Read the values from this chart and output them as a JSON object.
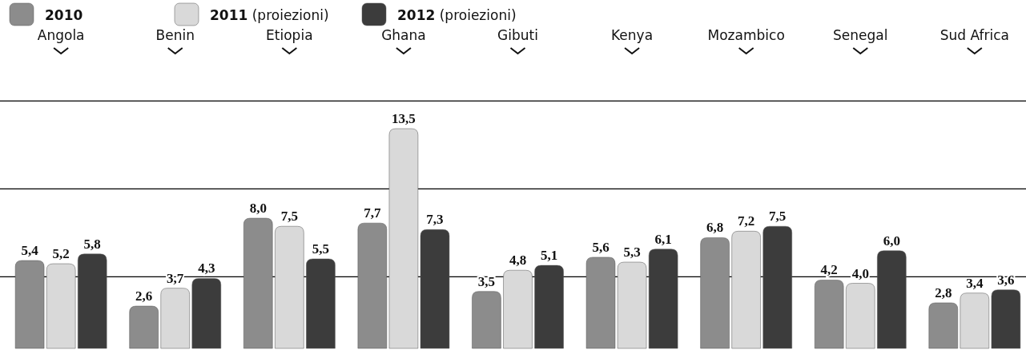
{
  "chart_data": {
    "type": "bar",
    "categories": [
      "Angola",
      "Benin",
      "Etiopia",
      "Ghana",
      "Gibuti",
      "Kenya",
      "Mozambico",
      "Senegal",
      "Sud Africa"
    ],
    "series": [
      {
        "name": "2010",
        "color": "#8c8c8c",
        "values": [
          5.4,
          2.6,
          8.0,
          7.7,
          3.5,
          5.6,
          6.8,
          4.2,
          2.8
        ],
        "value_labels": [
          "5,4",
          "2,6",
          "8,0",
          "7,7",
          "3,5",
          "5,6",
          "6,8",
          "4,2",
          "2,8"
        ]
      },
      {
        "name": "2011 (proiezioni)",
        "color": "#d9d9d9",
        "values": [
          5.2,
          3.7,
          7.5,
          13.5,
          4.8,
          5.3,
          7.2,
          4.0,
          3.4
        ],
        "value_labels": [
          "5,2",
          "3,7",
          "7,5",
          "13,5",
          "4,8",
          "5,3",
          "7,2",
          "4,0",
          "3,4"
        ]
      },
      {
        "name": "2012 (proiezioni)",
        "color": "#3c3c3c",
        "values": [
          5.8,
          4.3,
          5.5,
          7.3,
          5.1,
          6.1,
          7.5,
          6.0,
          3.6
        ],
        "value_labels": [
          "5,8",
          "4,3",
          "5,5",
          "7,3",
          "5,1",
          "6,1",
          "7,5",
          "6,0",
          "3,6"
        ]
      }
    ],
    "ref_lines": [
      {
        "axis": "y",
        "value": 4.4,
        "color": "#000000"
      },
      {
        "axis": "y",
        "value": 9.8,
        "color": "#000000"
      },
      {
        "axis": "y",
        "value": 15.2,
        "color": "#000000"
      }
    ],
    "legend": "top left"
  }
}
